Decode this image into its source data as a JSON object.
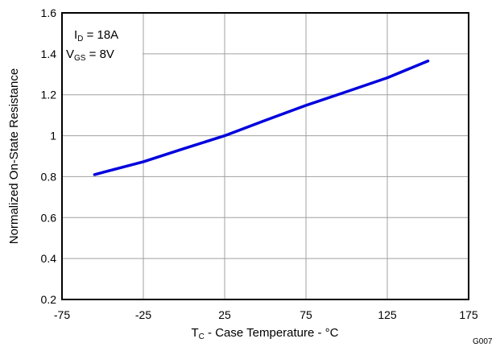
{
  "chart_data": {
    "type": "line",
    "xlabel": {
      "main": "T",
      "sub": "C",
      "rest": " - Case Temperature - °C"
    },
    "ylabel": "Normalized On-State Resistance",
    "xlim": [
      -75,
      175
    ],
    "ylim": [
      0.2,
      1.6
    ],
    "xticks": [
      -75,
      -25,
      25,
      75,
      125,
      175
    ],
    "xtick_labels": [
      "-75",
      "-25",
      "25",
      "75",
      "125",
      "175"
    ],
    "yticks": [
      0.2,
      0.4,
      0.6,
      0.8,
      1.0,
      1.2,
      1.4,
      1.6
    ],
    "ytick_labels": [
      "0.2",
      "0.4",
      "0.6",
      "0.8",
      "1",
      "1.2",
      "1.4",
      "1.6"
    ],
    "grid": true,
    "annotation": {
      "line1": {
        "main": "I",
        "sub": "D",
        "rest": " = 18A"
      },
      "line2": {
        "main": "V",
        "sub": "GS",
        "rest": " = 8V"
      }
    },
    "series": [
      {
        "color": "#0000dd",
        "x": [
          -55,
          -25,
          0,
          25,
          50,
          75,
          100,
          125,
          150
        ],
        "y": [
          0.81,
          0.873,
          0.937,
          1.0,
          1.075,
          1.148,
          1.215,
          1.283,
          1.365
        ]
      }
    ],
    "figure_code": "G007"
  }
}
